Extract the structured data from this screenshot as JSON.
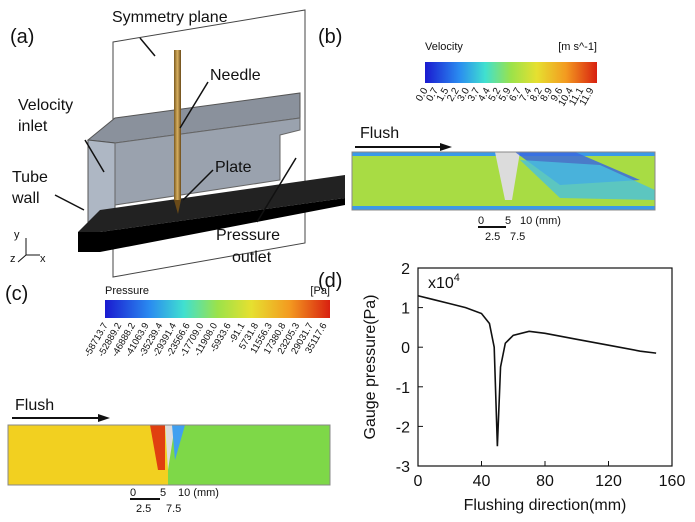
{
  "panel_a": {
    "label": "(a)",
    "symmetry_plane": "Symmetry plane",
    "needle": "Needle",
    "velocity_inlet": [
      "Velocity",
      "inlet"
    ],
    "tube_wall": [
      "Tube",
      "wall"
    ],
    "plate": "Plate",
    "pressure_outlet": [
      "Pressure",
      "outlet"
    ],
    "axes": [
      "y",
      "z",
      "x"
    ]
  },
  "panel_b": {
    "label": "(b)",
    "colorbar_title": "Velocity",
    "colorbar_unit": "[m s^-1]",
    "colorbar_labels": [
      "0.0",
      "0.7",
      "1.5",
      "2.2",
      "3.0",
      "3.7",
      "4.4",
      "5.2",
      "5.9",
      "6.7",
      "7.4",
      "8.2",
      "8.9",
      "9.6",
      "10.4",
      "11.1",
      "11.9"
    ],
    "flush": "Flush",
    "scale_top": [
      "0",
      "5",
      "10 (mm)"
    ],
    "scale_bottom": [
      "2.5",
      "7.5"
    ]
  },
  "panel_c": {
    "label": "(c)",
    "colorbar_title": "Pressure",
    "colorbar_unit": "[Pa]",
    "colorbar_labels": [
      "-58713.7",
      "-52889.2",
      "-46888.2",
      "-41063.9",
      "-35239.4",
      "-29391.4",
      "-23566.6",
      "-17709.0",
      "-11908.0",
      "-5933.6",
      "-91.1",
      "5731.8",
      "11556.3",
      "17380.8",
      "23205.3",
      "29031.7",
      "35117.6"
    ],
    "flush": "Flush",
    "scale_top": [
      "0",
      "5",
      "10 (mm)"
    ],
    "scale_bottom": [
      "2.5",
      "7.5"
    ]
  },
  "chart_data": {
    "type": "line",
    "panel_label": "(d)",
    "x_label": "Flushing direction(mm)",
    "y_label": "Gauge pressure(Pa)",
    "multiplier_base": "x10",
    "multiplier_exponent": "4",
    "x": [
      0,
      10,
      20,
      30,
      40,
      45,
      48,
      50,
      52,
      55,
      60,
      70,
      80,
      100,
      120,
      140,
      150
    ],
    "values": [
      1.3,
      1.2,
      1.1,
      1.0,
      0.85,
      0.6,
      0.0,
      -2.5,
      -0.5,
      0.1,
      0.3,
      0.4,
      0.35,
      0.2,
      0.05,
      -0.1,
      -0.15
    ],
    "color": "#111111",
    "xlim": [
      0,
      160
    ],
    "ylim": [
      -3,
      2
    ],
    "xticks": [
      0,
      40,
      80,
      120,
      160
    ],
    "yticks": [
      -3,
      -2,
      -1,
      0,
      1,
      2
    ]
  }
}
